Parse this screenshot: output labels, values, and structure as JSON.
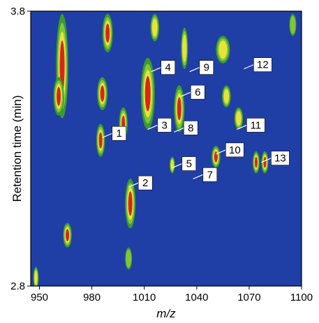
{
  "chart_data": {
    "type": "heatmap",
    "title": "",
    "xlabel": "m/z",
    "ylabel": "Retention time (min)",
    "xlim": [
      945,
      1100
    ],
    "ylim": [
      2.8,
      3.8
    ],
    "x_ticks": [
      "950",
      "980",
      "1010",
      "1040",
      "1070",
      "1100"
    ],
    "y_ticks": [
      "2.8",
      "3.8"
    ],
    "colors": {
      "background": "#1f3fa6",
      "low": "#3c9a2e",
      "mid": "#7fc63a",
      "high": "#e8e23a",
      "peak": "#d4281c"
    },
    "labeled_peaks": [
      {
        "label": "1",
        "mz": 986,
        "rt": 3.34
      },
      {
        "label": "2",
        "mz": 1001,
        "rt": 3.16
      },
      {
        "label": "3",
        "mz": 1012,
        "rt": 3.37
      },
      {
        "label": "4",
        "mz": 1014,
        "rt": 3.58
      },
      {
        "label": "5",
        "mz": 1026,
        "rt": 3.23
      },
      {
        "label": "6",
        "mz": 1031,
        "rt": 3.49
      },
      {
        "label": "7",
        "mz": 1038,
        "rt": 3.19
      },
      {
        "label": "8",
        "mz": 1027,
        "rt": 3.36
      },
      {
        "label": "9",
        "mz": 1036,
        "rt": 3.58
      },
      {
        "label": "10",
        "mz": 1051,
        "rt": 3.28
      },
      {
        "label": "11",
        "mz": 1063,
        "rt": 3.37
      },
      {
        "label": "12",
        "mz": 1067,
        "rt": 3.59
      },
      {
        "label": "13",
        "mz": 1077,
        "rt": 3.25
      }
    ],
    "features": [
      {
        "mz": 963,
        "rt0": 3.42,
        "rt1": 3.78,
        "w": 3.5,
        "level": 4
      },
      {
        "mz": 961,
        "rt0": 3.43,
        "rt1": 3.55,
        "w": 3,
        "level": 4
      },
      {
        "mz": 966,
        "rt0": 2.95,
        "rt1": 3.02,
        "w": 2.5,
        "level": 3
      },
      {
        "mz": 989,
        "rt0": 3.66,
        "rt1": 3.78,
        "w": 3,
        "level": 4
      },
      {
        "mz": 986,
        "rt0": 3.45,
        "rt1": 3.55,
        "w": 3,
        "level": 4
      },
      {
        "mz": 985,
        "rt0": 3.28,
        "rt1": 3.38,
        "w": 2.5,
        "level": 3
      },
      {
        "mz": 1012,
        "rt0": 3.38,
        "rt1": 3.62,
        "w": 4,
        "level": 4
      },
      {
        "mz": 1002,
        "rt0": 3.02,
        "rt1": 3.18,
        "w": 3,
        "level": 3
      },
      {
        "mz": 998,
        "rt0": 3.34,
        "rt1": 3.44,
        "w": 2.5,
        "level": 3
      },
      {
        "mz": 1030,
        "rt0": 3.37,
        "rt1": 3.52,
        "w": 3,
        "level": 3
      },
      {
        "mz": 1033,
        "rt0": 3.6,
        "rt1": 3.73,
        "w": 2,
        "level": 2
      },
      {
        "mz": 1055,
        "rt0": 3.62,
        "rt1": 3.7,
        "w": 4,
        "level": 2
      },
      {
        "mz": 1051,
        "rt0": 3.24,
        "rt1": 3.3,
        "w": 2.5,
        "level": 3
      },
      {
        "mz": 1064,
        "rt0": 3.38,
        "rt1": 3.44,
        "w": 2.5,
        "level": 2
      },
      {
        "mz": 1057,
        "rt0": 3.46,
        "rt1": 3.52,
        "w": 2.5,
        "level": 2
      },
      {
        "mz": 1074,
        "rt0": 3.22,
        "rt1": 3.28,
        "w": 2,
        "level": 3
      },
      {
        "mz": 1079,
        "rt0": 3.22,
        "rt1": 3.28,
        "w": 2,
        "level": 3
      },
      {
        "mz": 1016,
        "rt0": 3.7,
        "rt1": 3.78,
        "w": 2.5,
        "level": 2
      },
      {
        "mz": 1026,
        "rt0": 3.22,
        "rt1": 3.26,
        "w": 1.5,
        "level": 2
      },
      {
        "mz": 1001,
        "rt0": 2.87,
        "rt1": 2.93,
        "w": 2,
        "level": 1
      },
      {
        "mz": 948,
        "rt0": 2.8,
        "rt1": 2.86,
        "w": 1.5,
        "level": 2
      },
      {
        "mz": 1095,
        "rt0": 3.72,
        "rt1": 3.78,
        "w": 2,
        "level": 1
      }
    ]
  }
}
